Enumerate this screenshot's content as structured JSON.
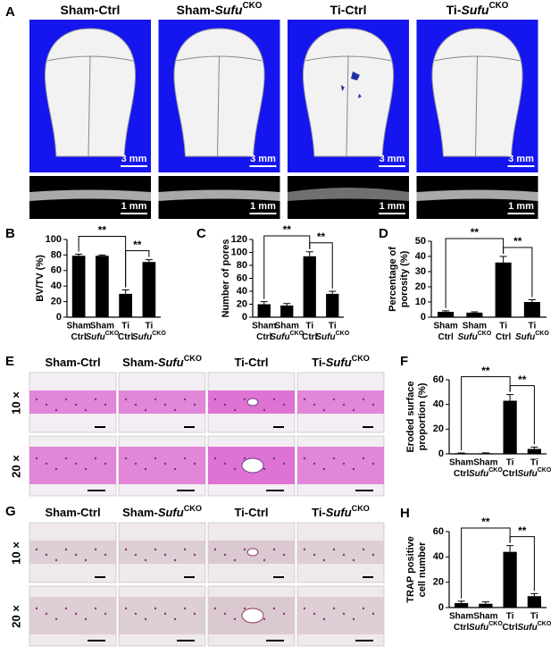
{
  "panel_a": {
    "letter": "A",
    "columns": [
      {
        "text": "Sham-Ctrl"
      },
      {
        "text": "Sham-",
        "italic": "Sufu",
        "sup": "CKO"
      },
      {
        "text": "Ti-Ctrl"
      },
      {
        "text": "Ti-",
        "italic": "Sufu",
        "sup": "CKO"
      }
    ],
    "scale_bars": [
      "3 mm",
      "1 mm"
    ]
  },
  "panel_e": {
    "letter": "E",
    "columns": [
      {
        "text": "Sham-Ctrl"
      },
      {
        "text": "Sham-",
        "italic": "Sufu",
        "sup": "CKO"
      },
      {
        "text": "Ti-Ctrl"
      },
      {
        "text": "Ti-",
        "italic": "Sufu",
        "sup": "CKO"
      }
    ],
    "rows": [
      "10 ×",
      "20 ×"
    ]
  },
  "panel_g": {
    "letter": "G",
    "columns": [
      {
        "text": "Sham-Ctrl"
      },
      {
        "text": "Sham-",
        "italic": "Sufu",
        "sup": "CKO"
      },
      {
        "text": "Ti-Ctrl"
      },
      {
        "text": "Ti-",
        "italic": "Sufu",
        "sup": "CKO"
      }
    ],
    "rows": [
      "10 ×",
      "20 ×"
    ]
  },
  "chart_data": [
    {
      "type": "bar",
      "panel": "B",
      "ylabel": [
        "BV/TV (%)"
      ],
      "categories": [
        {
          "top": "Sham",
          "bottom": "Ctrl"
        },
        {
          "top": "Sham",
          "italic": "Sufu",
          "sup": "CKO"
        },
        {
          "top": "Ti",
          "bottom": "Ctrl"
        },
        {
          "top": "Ti",
          "italic": "Sufu",
          "sup": "CKO"
        }
      ],
      "values": [
        79,
        79,
        30,
        71
      ],
      "errors": [
        2,
        1,
        5,
        3
      ],
      "color": "#000000",
      "ylim": [
        0,
        100
      ],
      "yticks": [
        0,
        20,
        40,
        60,
        80,
        100
      ],
      "significance": [
        {
          "from": 0,
          "to": 2,
          "label": "**"
        },
        {
          "from": 2,
          "to": 3,
          "label": "**"
        }
      ]
    },
    {
      "type": "bar",
      "panel": "C",
      "ylabel": [
        "Number of pores"
      ],
      "categories": [
        {
          "top": "Sham",
          "bottom": "Ctrl"
        },
        {
          "top": "Sham",
          "italic": "Sufu",
          "sup": "CKO"
        },
        {
          "top": "Ti",
          "bottom": "Ctrl"
        },
        {
          "top": "Ti",
          "italic": "Sufu",
          "sup": "CKO"
        }
      ],
      "values": [
        20,
        18,
        94,
        36
      ],
      "errors": [
        4,
        3,
        7,
        4
      ],
      "color": "#000000",
      "ylim": [
        0,
        120
      ],
      "yticks": [
        0,
        20,
        40,
        60,
        80,
        100,
        120
      ],
      "significance": [
        {
          "from": 0,
          "to": 2,
          "label": "**"
        },
        {
          "from": 2,
          "to": 3,
          "label": "**"
        }
      ]
    },
    {
      "type": "bar",
      "panel": "D",
      "ylabel": [
        "Percentage of",
        "porosity (%)"
      ],
      "categories": [
        {
          "top": "Sham",
          "bottom": "Ctrl"
        },
        {
          "top": "Sham",
          "italic": "Sufu",
          "sup": "CKO"
        },
        {
          "top": "Ti",
          "bottom": "Ctrl"
        },
        {
          "top": "Ti",
          "italic": "Sufu",
          "sup": "CKO"
        }
      ],
      "values": [
        3.5,
        3,
        36,
        10
      ],
      "errors": [
        0.7,
        0.5,
        4,
        1.5
      ],
      "color": "#000000",
      "ylim": [
        0,
        50
      ],
      "yticks": [
        0,
        10,
        20,
        30,
        40,
        50
      ],
      "significance": [
        {
          "from": 0,
          "to": 2,
          "label": "**"
        },
        {
          "from": 2,
          "to": 3,
          "label": "**"
        }
      ]
    },
    {
      "type": "bar",
      "panel": "F",
      "ylabel": [
        "Eroded surface",
        "proportion (%)"
      ],
      "categories": [
        {
          "top": "Sham",
          "bottom": "Ctrl"
        },
        {
          "top": "Sham",
          "italic": "Sufu",
          "sup": "CKO"
        },
        {
          "top": "Ti",
          "bottom": "Ctrl"
        },
        {
          "top": "Ti",
          "italic": "Sufu",
          "sup": "CKO"
        }
      ],
      "values": [
        0.5,
        0.5,
        43,
        4
      ],
      "errors": [
        0.2,
        0.3,
        5,
        1.5
      ],
      "color": "#000000",
      "ylim": [
        0,
        60
      ],
      "yticks": [
        0,
        20,
        40,
        60
      ],
      "significance": [
        {
          "from": 0,
          "to": 2,
          "label": "**"
        },
        {
          "from": 2,
          "to": 3,
          "label": "**"
        }
      ]
    },
    {
      "type": "bar",
      "panel": "H",
      "ylabel": [
        "TRAP positive",
        "cell number"
      ],
      "categories": [
        {
          "top": "Sham",
          "bottom": "Ctrl"
        },
        {
          "top": "Sham",
          "italic": "Sufu",
          "sup": "CKO"
        },
        {
          "top": "Ti",
          "bottom": "Ctrl"
        },
        {
          "top": "Ti",
          "italic": "Sufu",
          "sup": "CKO"
        }
      ],
      "values": [
        3.5,
        3,
        44,
        9
      ],
      "errors": [
        1.5,
        1.5,
        5,
        2
      ],
      "color": "#000000",
      "ylim": [
        0,
        60
      ],
      "yticks": [
        0,
        20,
        40,
        60
      ],
      "significance": [
        {
          "from": 0,
          "to": 2,
          "label": "**"
        },
        {
          "from": 2,
          "to": 3,
          "label": "**"
        }
      ]
    }
  ]
}
